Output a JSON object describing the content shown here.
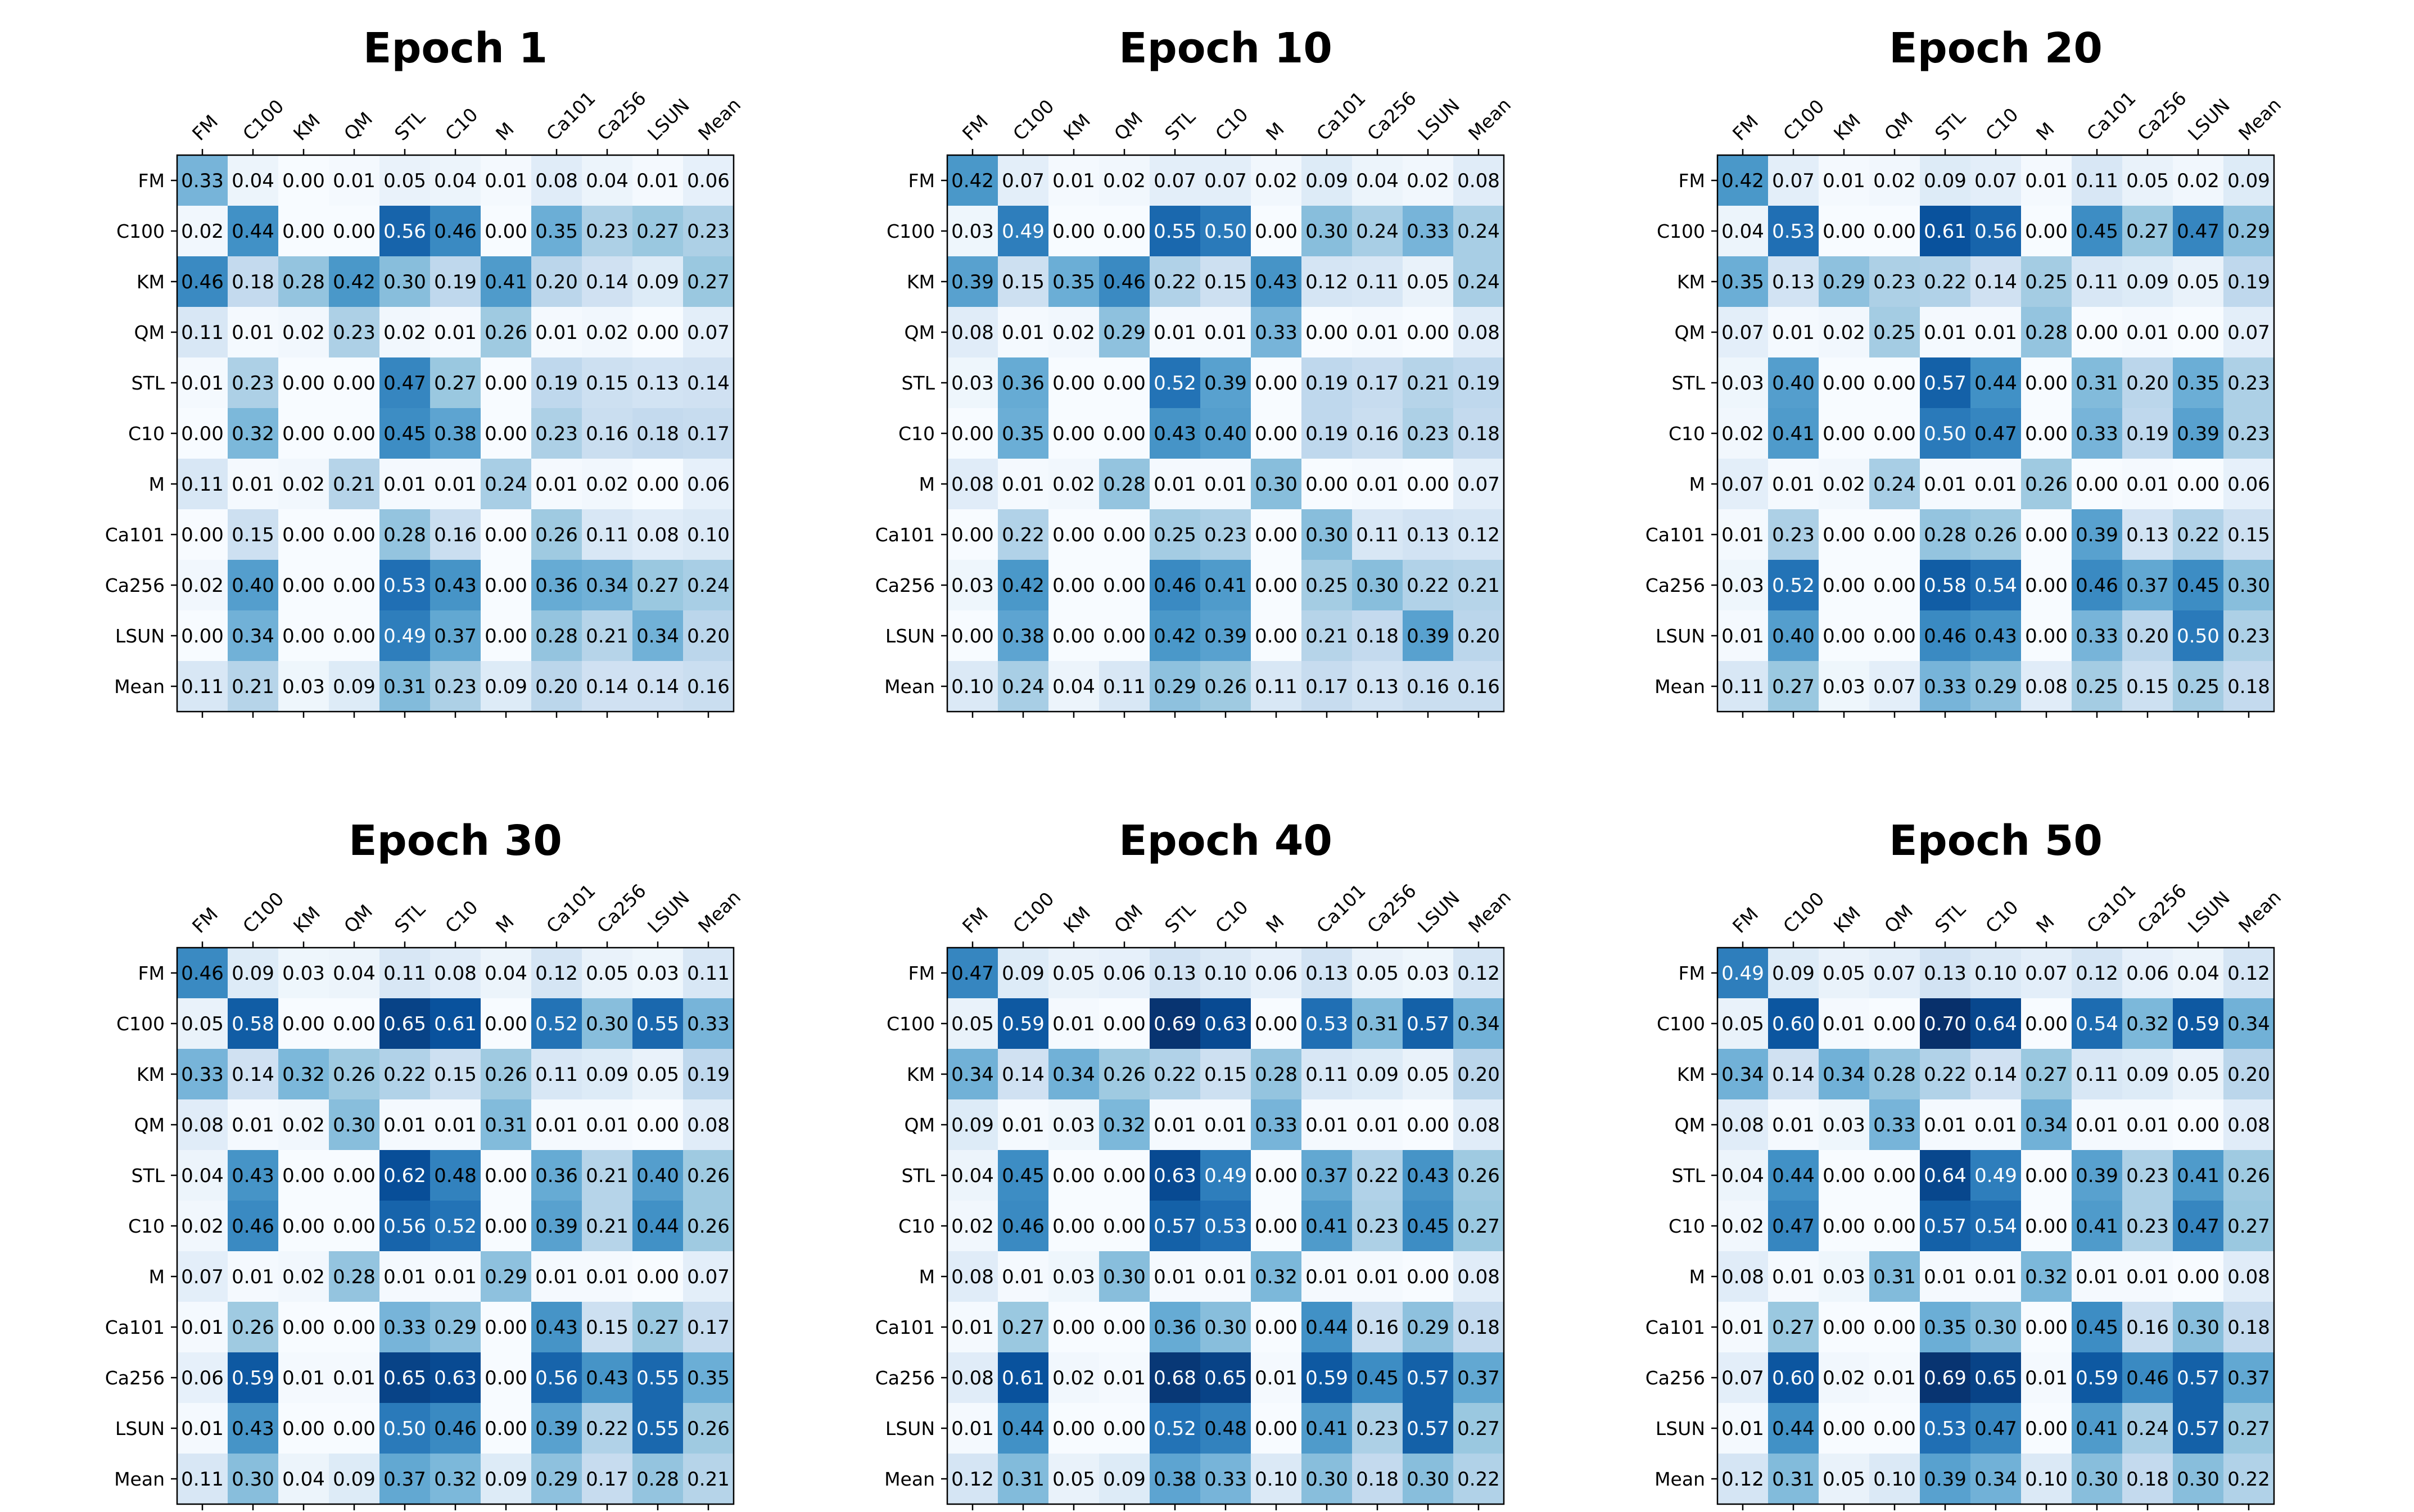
{
  "chart_data": [
    {
      "type": "heatmap",
      "title": "Epoch 1",
      "labels": [
        "FM",
        "C100",
        "KM",
        "QM",
        "STL",
        "C10",
        "M",
        "Ca101",
        "Ca256",
        "LSUN",
        "Mean"
      ],
      "matrix": [
        [
          0.33,
          0.04,
          0.0,
          0.01,
          0.05,
          0.04,
          0.01,
          0.08,
          0.04,
          0.01,
          0.06
        ],
        [
          0.02,
          0.44,
          0.0,
          0.0,
          0.56,
          0.46,
          0.0,
          0.35,
          0.23,
          0.27,
          0.23
        ],
        [
          0.46,
          0.18,
          0.28,
          0.42,
          0.3,
          0.19,
          0.41,
          0.2,
          0.14,
          0.09,
          0.27
        ],
        [
          0.11,
          0.01,
          0.02,
          0.23,
          0.02,
          0.01,
          0.26,
          0.01,
          0.02,
          0.0,
          0.07
        ],
        [
          0.01,
          0.23,
          0.0,
          0.0,
          0.47,
          0.27,
          0.0,
          0.19,
          0.15,
          0.13,
          0.14
        ],
        [
          0.0,
          0.32,
          0.0,
          0.0,
          0.45,
          0.38,
          0.0,
          0.23,
          0.16,
          0.18,
          0.17
        ],
        [
          0.11,
          0.01,
          0.02,
          0.21,
          0.01,
          0.01,
          0.24,
          0.01,
          0.02,
          0.0,
          0.06
        ],
        [
          0.0,
          0.15,
          0.0,
          0.0,
          0.28,
          0.16,
          0.0,
          0.26,
          0.11,
          0.08,
          0.1
        ],
        [
          0.02,
          0.4,
          0.0,
          0.0,
          0.53,
          0.43,
          0.0,
          0.36,
          0.34,
          0.27,
          0.24
        ],
        [
          0.0,
          0.34,
          0.0,
          0.0,
          0.49,
          0.37,
          0.0,
          0.28,
          0.21,
          0.34,
          0.2
        ],
        [
          0.11,
          0.21,
          0.03,
          0.09,
          0.31,
          0.23,
          0.09,
          0.2,
          0.14,
          0.14,
          0.16
        ]
      ]
    },
    {
      "type": "heatmap",
      "title": "Epoch 10",
      "labels": [
        "FM",
        "C100",
        "KM",
        "QM",
        "STL",
        "C10",
        "M",
        "Ca101",
        "Ca256",
        "LSUN",
        "Mean"
      ],
      "matrix": [
        [
          0.42,
          0.07,
          0.01,
          0.02,
          0.07,
          0.07,
          0.02,
          0.09,
          0.04,
          0.02,
          0.08
        ],
        [
          0.03,
          0.49,
          0.0,
          0.0,
          0.55,
          0.5,
          0.0,
          0.3,
          0.24,
          0.33,
          0.24
        ],
        [
          0.39,
          0.15,
          0.35,
          0.46,
          0.22,
          0.15,
          0.43,
          0.12,
          0.11,
          0.05,
          0.24
        ],
        [
          0.08,
          0.01,
          0.02,
          0.29,
          0.01,
          0.01,
          0.33,
          0.0,
          0.01,
          0.0,
          0.08
        ],
        [
          0.03,
          0.36,
          0.0,
          0.0,
          0.52,
          0.39,
          0.0,
          0.19,
          0.17,
          0.21,
          0.19
        ],
        [
          0.0,
          0.35,
          0.0,
          0.0,
          0.43,
          0.4,
          0.0,
          0.19,
          0.16,
          0.23,
          0.18
        ],
        [
          0.08,
          0.01,
          0.02,
          0.28,
          0.01,
          0.01,
          0.3,
          0.0,
          0.01,
          0.0,
          0.07
        ],
        [
          0.0,
          0.22,
          0.0,
          0.0,
          0.25,
          0.23,
          0.0,
          0.3,
          0.11,
          0.13,
          0.12
        ],
        [
          0.03,
          0.42,
          0.0,
          0.0,
          0.46,
          0.41,
          0.0,
          0.25,
          0.3,
          0.22,
          0.21
        ],
        [
          0.0,
          0.38,
          0.0,
          0.0,
          0.42,
          0.39,
          0.0,
          0.21,
          0.18,
          0.39,
          0.2
        ],
        [
          0.1,
          0.24,
          0.04,
          0.11,
          0.29,
          0.26,
          0.11,
          0.17,
          0.13,
          0.16,
          0.16
        ]
      ]
    },
    {
      "type": "heatmap",
      "title": "Epoch 20",
      "labels": [
        "FM",
        "C100",
        "KM",
        "QM",
        "STL",
        "C10",
        "M",
        "Ca101",
        "Ca256",
        "LSUN",
        "Mean"
      ],
      "matrix": [
        [
          0.42,
          0.07,
          0.01,
          0.02,
          0.09,
          0.07,
          0.01,
          0.11,
          0.05,
          0.02,
          0.09
        ],
        [
          0.04,
          0.53,
          0.0,
          0.0,
          0.61,
          0.56,
          0.0,
          0.45,
          0.27,
          0.47,
          0.29
        ],
        [
          0.35,
          0.13,
          0.29,
          0.23,
          0.22,
          0.14,
          0.25,
          0.11,
          0.09,
          0.05,
          0.19
        ],
        [
          0.07,
          0.01,
          0.02,
          0.25,
          0.01,
          0.01,
          0.28,
          0.0,
          0.01,
          0.0,
          0.07
        ],
        [
          0.03,
          0.4,
          0.0,
          0.0,
          0.57,
          0.44,
          0.0,
          0.31,
          0.2,
          0.35,
          0.23
        ],
        [
          0.02,
          0.41,
          0.0,
          0.0,
          0.5,
          0.47,
          0.0,
          0.33,
          0.19,
          0.39,
          0.23
        ],
        [
          0.07,
          0.01,
          0.02,
          0.24,
          0.01,
          0.01,
          0.26,
          0.0,
          0.01,
          0.0,
          0.06
        ],
        [
          0.01,
          0.23,
          0.0,
          0.0,
          0.28,
          0.26,
          0.0,
          0.39,
          0.13,
          0.22,
          0.15
        ],
        [
          0.03,
          0.52,
          0.0,
          0.0,
          0.58,
          0.54,
          0.0,
          0.46,
          0.37,
          0.45,
          0.3
        ],
        [
          0.01,
          0.4,
          0.0,
          0.0,
          0.46,
          0.43,
          0.0,
          0.33,
          0.2,
          0.5,
          0.23
        ],
        [
          0.11,
          0.27,
          0.03,
          0.07,
          0.33,
          0.29,
          0.08,
          0.25,
          0.15,
          0.25,
          0.18
        ]
      ]
    },
    {
      "type": "heatmap",
      "title": "Epoch 30",
      "labels": [
        "FM",
        "C100",
        "KM",
        "QM",
        "STL",
        "C10",
        "M",
        "Ca101",
        "Ca256",
        "LSUN",
        "Mean"
      ],
      "matrix": [
        [
          0.46,
          0.09,
          0.03,
          0.04,
          0.11,
          0.08,
          0.04,
          0.12,
          0.05,
          0.03,
          0.11
        ],
        [
          0.05,
          0.58,
          0.0,
          0.0,
          0.65,
          0.61,
          0.0,
          0.52,
          0.3,
          0.55,
          0.33
        ],
        [
          0.33,
          0.14,
          0.32,
          0.26,
          0.22,
          0.15,
          0.26,
          0.11,
          0.09,
          0.05,
          0.19
        ],
        [
          0.08,
          0.01,
          0.02,
          0.3,
          0.01,
          0.01,
          0.31,
          0.01,
          0.01,
          0.0,
          0.08
        ],
        [
          0.04,
          0.43,
          0.0,
          0.0,
          0.62,
          0.48,
          0.0,
          0.36,
          0.21,
          0.4,
          0.26
        ],
        [
          0.02,
          0.46,
          0.0,
          0.0,
          0.56,
          0.52,
          0.0,
          0.39,
          0.21,
          0.44,
          0.26
        ],
        [
          0.07,
          0.01,
          0.02,
          0.28,
          0.01,
          0.01,
          0.29,
          0.01,
          0.01,
          0.0,
          0.07
        ],
        [
          0.01,
          0.26,
          0.0,
          0.0,
          0.33,
          0.29,
          0.0,
          0.43,
          0.15,
          0.27,
          0.17
        ],
        [
          0.06,
          0.59,
          0.01,
          0.01,
          0.65,
          0.63,
          0.0,
          0.56,
          0.43,
          0.55,
          0.35
        ],
        [
          0.01,
          0.43,
          0.0,
          0.0,
          0.5,
          0.46,
          0.0,
          0.39,
          0.22,
          0.55,
          0.26
        ],
        [
          0.11,
          0.3,
          0.04,
          0.09,
          0.37,
          0.32,
          0.09,
          0.29,
          0.17,
          0.28,
          0.21
        ]
      ]
    },
    {
      "type": "heatmap",
      "title": "Epoch 40",
      "labels": [
        "FM",
        "C100",
        "KM",
        "QM",
        "STL",
        "C10",
        "M",
        "Ca101",
        "Ca256",
        "LSUN",
        "Mean"
      ],
      "matrix": [
        [
          0.47,
          0.09,
          0.05,
          0.06,
          0.13,
          0.1,
          0.06,
          0.13,
          0.05,
          0.03,
          0.12
        ],
        [
          0.05,
          0.59,
          0.01,
          0.0,
          0.69,
          0.63,
          0.0,
          0.53,
          0.31,
          0.57,
          0.34
        ],
        [
          0.34,
          0.14,
          0.34,
          0.26,
          0.22,
          0.15,
          0.28,
          0.11,
          0.09,
          0.05,
          0.2
        ],
        [
          0.09,
          0.01,
          0.03,
          0.32,
          0.01,
          0.01,
          0.33,
          0.01,
          0.01,
          0.0,
          0.08
        ],
        [
          0.04,
          0.45,
          0.0,
          0.0,
          0.63,
          0.49,
          0.0,
          0.37,
          0.22,
          0.43,
          0.26
        ],
        [
          0.02,
          0.46,
          0.0,
          0.0,
          0.57,
          0.53,
          0.0,
          0.41,
          0.23,
          0.45,
          0.27
        ],
        [
          0.08,
          0.01,
          0.03,
          0.3,
          0.01,
          0.01,
          0.32,
          0.01,
          0.01,
          0.0,
          0.08
        ],
        [
          0.01,
          0.27,
          0.0,
          0.0,
          0.36,
          0.3,
          0.0,
          0.44,
          0.16,
          0.29,
          0.18
        ],
        [
          0.08,
          0.61,
          0.02,
          0.01,
          0.68,
          0.65,
          0.01,
          0.59,
          0.45,
          0.57,
          0.37
        ],
        [
          0.01,
          0.44,
          0.0,
          0.0,
          0.52,
          0.48,
          0.0,
          0.41,
          0.23,
          0.57,
          0.27
        ],
        [
          0.12,
          0.31,
          0.05,
          0.09,
          0.38,
          0.33,
          0.1,
          0.3,
          0.18,
          0.3,
          0.22
        ]
      ]
    },
    {
      "type": "heatmap",
      "title": "Epoch 50",
      "labels": [
        "FM",
        "C100",
        "KM",
        "QM",
        "STL",
        "C10",
        "M",
        "Ca101",
        "Ca256",
        "LSUN",
        "Mean"
      ],
      "matrix": [
        [
          0.49,
          0.09,
          0.05,
          0.07,
          0.13,
          0.1,
          0.07,
          0.12,
          0.06,
          0.04,
          0.12
        ],
        [
          0.05,
          0.6,
          0.01,
          0.0,
          0.7,
          0.64,
          0.0,
          0.54,
          0.32,
          0.59,
          0.34
        ],
        [
          0.34,
          0.14,
          0.34,
          0.28,
          0.22,
          0.14,
          0.27,
          0.11,
          0.09,
          0.05,
          0.2
        ],
        [
          0.08,
          0.01,
          0.03,
          0.33,
          0.01,
          0.01,
          0.34,
          0.01,
          0.01,
          0.0,
          0.08
        ],
        [
          0.04,
          0.44,
          0.0,
          0.0,
          0.64,
          0.49,
          0.0,
          0.39,
          0.23,
          0.41,
          0.26
        ],
        [
          0.02,
          0.47,
          0.0,
          0.0,
          0.57,
          0.54,
          0.0,
          0.41,
          0.23,
          0.47,
          0.27
        ],
        [
          0.08,
          0.01,
          0.03,
          0.31,
          0.01,
          0.01,
          0.32,
          0.01,
          0.01,
          0.0,
          0.08
        ],
        [
          0.01,
          0.27,
          0.0,
          0.0,
          0.35,
          0.3,
          0.0,
          0.45,
          0.16,
          0.3,
          0.18
        ],
        [
          0.07,
          0.6,
          0.02,
          0.01,
          0.69,
          0.65,
          0.01,
          0.59,
          0.46,
          0.57,
          0.37
        ],
        [
          0.01,
          0.44,
          0.0,
          0.0,
          0.53,
          0.47,
          0.0,
          0.41,
          0.24,
          0.57,
          0.27
        ],
        [
          0.12,
          0.31,
          0.05,
          0.1,
          0.39,
          0.34,
          0.1,
          0.3,
          0.18,
          0.3,
          0.22
        ]
      ]
    }
  ]
}
